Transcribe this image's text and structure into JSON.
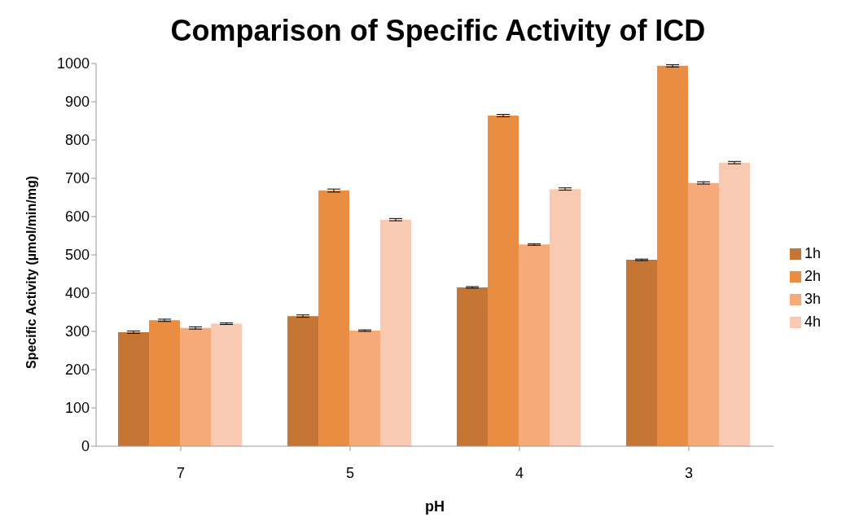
{
  "chart_data": {
    "type": "bar",
    "title": "Comparison of Specific Activity of ICD",
    "xlabel": "pH",
    "ylabel": "Specific Activity (µmol/min/mg)",
    "categories": [
      "7",
      "5",
      "4",
      "3"
    ],
    "series": [
      {
        "name": "1h",
        "color": "#c57634",
        "values": [
          298,
          340,
          415,
          487
        ],
        "errors": [
          3,
          3,
          2,
          2
        ]
      },
      {
        "name": "2h",
        "color": "#e88d42",
        "values": [
          329,
          668,
          864,
          994
        ],
        "errors": [
          3,
          4,
          3,
          3
        ]
      },
      {
        "name": "3h",
        "color": "#f6aa79",
        "values": [
          309,
          302,
          527,
          688
        ],
        "errors": [
          3,
          2,
          2,
          3
        ]
      },
      {
        "name": "4h",
        "color": "#f8cab2",
        "values": [
          320,
          592,
          672,
          741
        ],
        "errors": [
          2,
          3,
          3,
          3
        ]
      }
    ],
    "ylim": [
      0,
      1000
    ],
    "yticks": [
      0,
      100,
      200,
      300,
      400,
      500,
      600,
      700,
      800,
      900,
      1000
    ],
    "grid": false,
    "legend": "right"
  }
}
